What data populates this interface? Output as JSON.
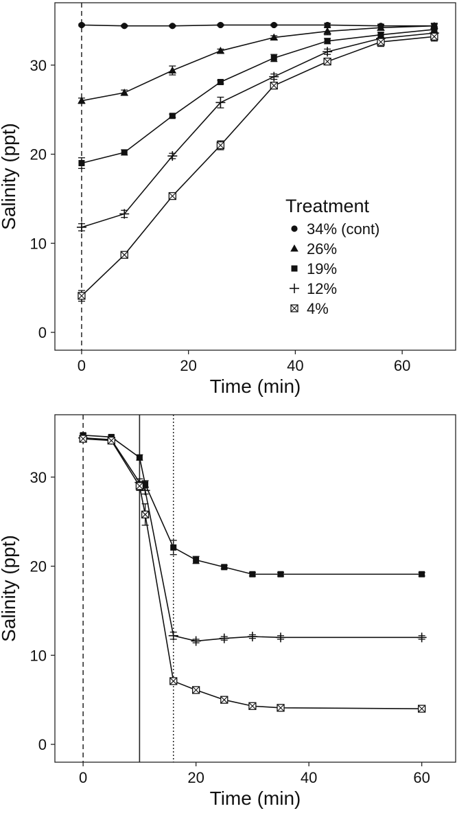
{
  "chart_data": [
    {
      "type": "line",
      "panel": "top",
      "xlabel": "Time (min)",
      "ylabel": "Salinity (ppt)",
      "xlim": [
        -5,
        70
      ],
      "ylim": [
        -2,
        37
      ],
      "xticks": [
        0,
        20,
        40,
        60
      ],
      "yticks": [
        0,
        10,
        20,
        30
      ],
      "legend": {
        "title": "Treatment",
        "position": "right-middle",
        "entries": [
          {
            "label": "34% (cont)",
            "marker": "circle"
          },
          {
            "label": "26%",
            "marker": "triangle"
          },
          {
            "label": "19%",
            "marker": "square"
          },
          {
            "label": "12%",
            "marker": "plus"
          },
          {
            "label": "4%",
            "marker": "boxx"
          }
        ]
      },
      "vlines": [
        {
          "x": 0,
          "style": "dashed"
        }
      ],
      "series": [
        {
          "name": "34% (cont)",
          "marker": "circle",
          "x": [
            0,
            8,
            17,
            26,
            36,
            46,
            56,
            66
          ],
          "y": [
            34.5,
            34.4,
            34.4,
            34.5,
            34.5,
            34.5,
            34.4,
            34.4
          ],
          "err": [
            0.1,
            0.1,
            0.1,
            0.1,
            0.1,
            0.2,
            0.2,
            0.2
          ]
        },
        {
          "name": "26%",
          "marker": "triangle",
          "x": [
            0,
            8,
            17,
            26,
            36,
            46,
            56,
            66
          ],
          "y": [
            26.0,
            26.9,
            29.4,
            31.6,
            33.1,
            33.8,
            34.2,
            34.4
          ],
          "err": [
            0.3,
            0.3,
            0.5,
            0.2,
            0.2,
            0.4,
            0.3,
            0.3
          ]
        },
        {
          "name": "19%",
          "marker": "square",
          "x": [
            0,
            8,
            17,
            26,
            36,
            46,
            56,
            66
          ],
          "y": [
            19.0,
            20.2,
            24.3,
            28.1,
            30.8,
            32.7,
            33.4,
            34.0
          ],
          "err": [
            0.6,
            0.3,
            0.2,
            0.2,
            0.4,
            0.3,
            0.3,
            0.3
          ]
        },
        {
          "name": "12%",
          "marker": "plus",
          "x": [
            0,
            8,
            17,
            26,
            36,
            46,
            56,
            66
          ],
          "y": [
            11.8,
            13.3,
            19.8,
            25.8,
            28.7,
            31.5,
            33.0,
            33.6
          ],
          "err": [
            0.4,
            0.4,
            0.3,
            0.6,
            0.3,
            0.3,
            0.4,
            0.4
          ]
        },
        {
          "name": "4%",
          "marker": "boxx",
          "x": [
            0,
            8,
            17,
            26,
            36,
            46,
            56,
            66
          ],
          "y": [
            4.1,
            8.7,
            15.3,
            21.0,
            27.7,
            30.4,
            32.6,
            33.2
          ],
          "err": [
            0.6,
            0.3,
            0.2,
            0.5,
            0.3,
            0.3,
            0.5,
            0.5
          ]
        }
      ]
    },
    {
      "type": "line",
      "panel": "bottom",
      "xlabel": "Time (min)",
      "ylabel": "Salinity (ppt)",
      "xlim": [
        -5,
        66
      ],
      "ylim": [
        -2,
        37
      ],
      "xticks": [
        0,
        20,
        40,
        60
      ],
      "yticks": [
        0,
        10,
        20,
        30
      ],
      "vlines": [
        {
          "x": 0,
          "style": "dashed"
        },
        {
          "x": 10,
          "style": "solid"
        },
        {
          "x": 16,
          "style": "dotted"
        }
      ],
      "series": [
        {
          "name": "19%",
          "marker": "square",
          "x": [
            0,
            5,
            10,
            11,
            16,
            20,
            25,
            30,
            35,
            60
          ],
          "y": [
            34.7,
            34.5,
            32.2,
            29.2,
            22.1,
            20.7,
            19.9,
            19.1,
            19.1,
            19.1
          ],
          "err": [
            0.2,
            0.2,
            0.3,
            0.4,
            0.8,
            0.4,
            0.2,
            0.2,
            0.2,
            0.2
          ]
        },
        {
          "name": "12%",
          "marker": "plus",
          "x": [
            0,
            5,
            10,
            11,
            16,
            20,
            25,
            30,
            35,
            60
          ],
          "y": [
            34.4,
            34.2,
            29.4,
            28.5,
            12.2,
            11.6,
            11.9,
            12.1,
            12.0,
            12.0
          ],
          "err": [
            0.3,
            0.2,
            0.4,
            0.4,
            0.4,
            0.2,
            0.2,
            0.2,
            0.2,
            0.2
          ]
        },
        {
          "name": "4%",
          "marker": "boxx",
          "x": [
            0,
            5,
            10,
            11,
            16,
            20,
            25,
            30,
            35,
            60
          ],
          "y": [
            34.3,
            34.1,
            29.0,
            25.8,
            7.1,
            6.1,
            5.0,
            4.3,
            4.1,
            4.0
          ],
          "err": [
            0.3,
            0.3,
            0.5,
            1.2,
            0.3,
            0.3,
            0.2,
            0.2,
            0.2,
            0.2
          ]
        }
      ]
    }
  ]
}
